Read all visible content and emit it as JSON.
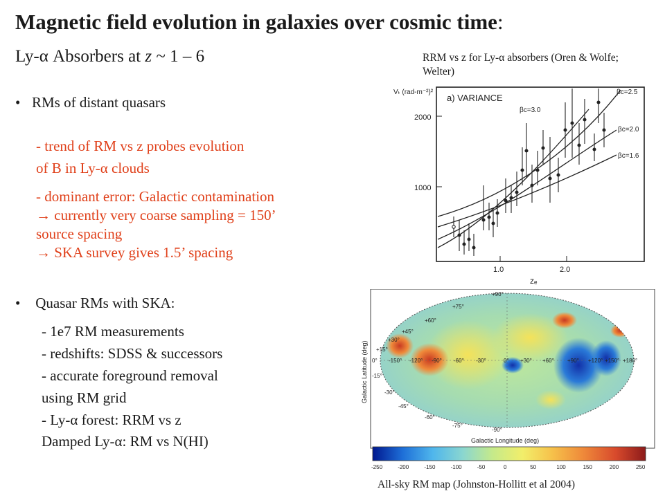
{
  "slide": {
    "title_main": "Magnetic field evolution in  galaxies over cosmic time",
    "title_colon": ":",
    "subtitle_pre": "Ly-α Absorbers at ",
    "subtitle_z": "z",
    "subtitle_post": " ~ 1 – 6"
  },
  "bullets": [
    {
      "text": "RMs of distant quasars",
      "sub": [
        "-  trend of RM vs z probes evolution",
        "   of B in Ly-α clouds",
        "- dominant error: Galactic contamination",
        "  → currently very coarse sampling = 150’",
        "  source spacing",
        "  → SKA survey gives 1.5’ spacing"
      ]
    },
    {
      "text": " Quasar RMs with SKA:",
      "sub": [
        "-   1e7  RM measurements",
        "-   redshifts: SDSS & successors",
        "-   accurate foreground removal",
        "     using RM grid",
        "-   Ly-α forest:  RRM vs z",
        "     Damped Ly-α: RM vs N(HI)"
      ]
    }
  ],
  "figure_top": {
    "caption": "RRM vs z for Ly-α absorbers (Oren & Wolfe; Welter)",
    "panel_label": "a) VARIANCE",
    "y_axis_label": "Vₜ (rad-m⁻²)²",
    "x_axis_label": "zₑ",
    "y_ticks": [
      "2000",
      "1000"
    ],
    "x_ticks": [
      "1.0",
      "2.0"
    ],
    "curve_labels": [
      "βc=2.5",
      "βc=3.0",
      "βc=2.0",
      "βc=1.6"
    ]
  },
  "figure_bottom": {
    "caption": "All-sky RM map (Johnston-Hollitt et al 2004)",
    "y_axis_label": "Galactic Latitude (deg)",
    "x_axis_label": "Galactic Longitude (deg)",
    "lat_labels": [
      "+90°",
      "+75°",
      "+60°",
      "+45°",
      "+30°",
      "+15°",
      "0°",
      "-15°",
      "-30°",
      "-45°",
      "-60°",
      "-75°",
      "-90°"
    ],
    "lon_labels": [
      "-150°",
      "-120°",
      "-90°",
      "-60°",
      "-30°",
      "0°",
      "+30°",
      "+60°",
      "+90°",
      "+120°",
      "+150°",
      "+180°"
    ],
    "colorbar_ticks": [
      "-250",
      "-200",
      "-150",
      "-100",
      "-50",
      "0",
      "50",
      "100",
      "150",
      "200",
      "250"
    ],
    "colorbar_colors": [
      "#00188f",
      "#1e6fd8",
      "#4fb6ec",
      "#8ad6d0",
      "#c6ea8a",
      "#f2ee6a",
      "#f6c04a",
      "#ef8a3a",
      "#d84a2c",
      "#8c1a1a"
    ]
  }
}
